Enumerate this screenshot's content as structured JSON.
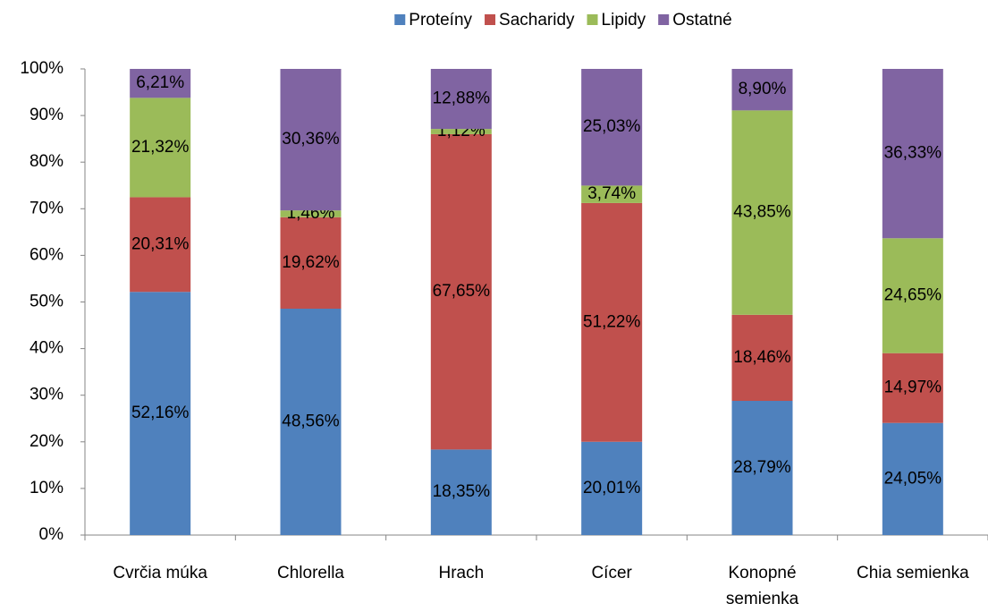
{
  "chart_data": {
    "type": "stacked_bar",
    "categories": [
      "Cvrčia múka",
      "Chlorella",
      "Hrach",
      "Cícer",
      "Konopné semienka",
      "Chia semienka"
    ],
    "series": [
      {
        "name": "Proteíny",
        "color": "#4f81bd",
        "values": [
          52.16,
          48.56,
          18.35,
          20.01,
          28.79,
          24.05
        ],
        "value_labels": [
          "52,16%",
          "48,56%",
          "18,35%",
          "20,01%",
          "28,79%",
          "24,05%"
        ]
      },
      {
        "name": "Sacharidy",
        "color": "#c0504d",
        "values": [
          20.31,
          19.62,
          67.65,
          51.22,
          18.46,
          14.97
        ],
        "value_labels": [
          "20,31%",
          "19,62%",
          "67,65%",
          "51,22%",
          "18,46%",
          "14,97%"
        ]
      },
      {
        "name": "Lipidy",
        "color": "#9bbb59",
        "values": [
          21.32,
          1.46,
          1.12,
          3.74,
          43.85,
          24.65
        ],
        "value_labels": [
          "21,32%",
          "1,46%",
          "1,12%",
          "3,74%",
          "43,85%",
          "24,65%"
        ]
      },
      {
        "name": "Ostatné",
        "color": "#8064a2",
        "values": [
          6.21,
          30.36,
          12.88,
          25.03,
          8.9,
          36.33
        ],
        "value_labels": [
          "6,21%",
          "30,36%",
          "12,88%",
          "25,03%",
          "8,90%",
          "36,33%"
        ]
      }
    ],
    "ylim": [
      0,
      100
    ],
    "yticks": [
      {
        "value": 0,
        "label": "0%"
      },
      {
        "value": 10,
        "label": "10%"
      },
      {
        "value": 20,
        "label": "20%"
      },
      {
        "value": 30,
        "label": "30%"
      },
      {
        "value": 40,
        "label": "40%"
      },
      {
        "value": 50,
        "label": "50%"
      },
      {
        "value": 60,
        "label": "60%"
      },
      {
        "value": 70,
        "label": "70%"
      },
      {
        "value": 80,
        "label": "80%"
      },
      {
        "value": 90,
        "label": "90%"
      },
      {
        "value": 100,
        "label": "100%"
      }
    ],
    "legend": "top"
  }
}
